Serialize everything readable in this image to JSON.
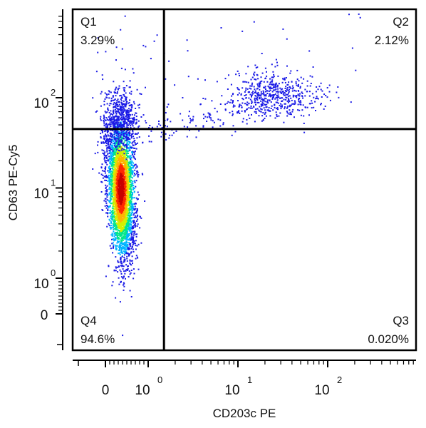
{
  "chart_data": {
    "type": "scatter",
    "title": "",
    "xlabel": "CD203c PE",
    "ylabel": "CD63 PE-Cy5",
    "x_scale": "biexponential",
    "y_scale": "biexponential",
    "x_ticks": [
      {
        "value": 0,
        "base": "0",
        "exp": ""
      },
      {
        "value": 1,
        "base": "10",
        "exp": "0"
      },
      {
        "value": 10,
        "base": "10",
        "exp": "1"
      },
      {
        "value": 100,
        "base": "10",
        "exp": "2"
      }
    ],
    "y_ticks": [
      {
        "value": 0,
        "base": "0",
        "exp": ""
      },
      {
        "value": 1,
        "base": "10",
        "exp": "0"
      },
      {
        "value": 10,
        "base": "10",
        "exp": "1"
      },
      {
        "value": 100,
        "base": "10",
        "exp": "2"
      }
    ],
    "gate": {
      "x": 1.5,
      "y": 45
    },
    "quadrants": [
      {
        "name": "Q1",
        "percent": "3.29%",
        "position": "top-left"
      },
      {
        "name": "Q2",
        "percent": "2.12%",
        "position": "top-right"
      },
      {
        "name": "Q3",
        "percent": "0.020%",
        "position": "bottom-right"
      },
      {
        "name": "Q4",
        "percent": "94.6%",
        "position": "bottom-left"
      }
    ],
    "populations": [
      {
        "name": "main",
        "x_center": 0.35,
        "y_center": 10,
        "fraction": 0.94
      },
      {
        "name": "upper-left",
        "x_center": 0.35,
        "y_center": 80,
        "fraction": 0.035
      },
      {
        "name": "upper-right",
        "x_center": 25,
        "y_center": 110,
        "fraction": 0.021
      }
    ],
    "colormap": [
      "#1a1ae6",
      "#00b4ff",
      "#00e68c",
      "#d2f000",
      "#ffb400",
      "#ff2800",
      "#c80000"
    ],
    "grid": false
  }
}
